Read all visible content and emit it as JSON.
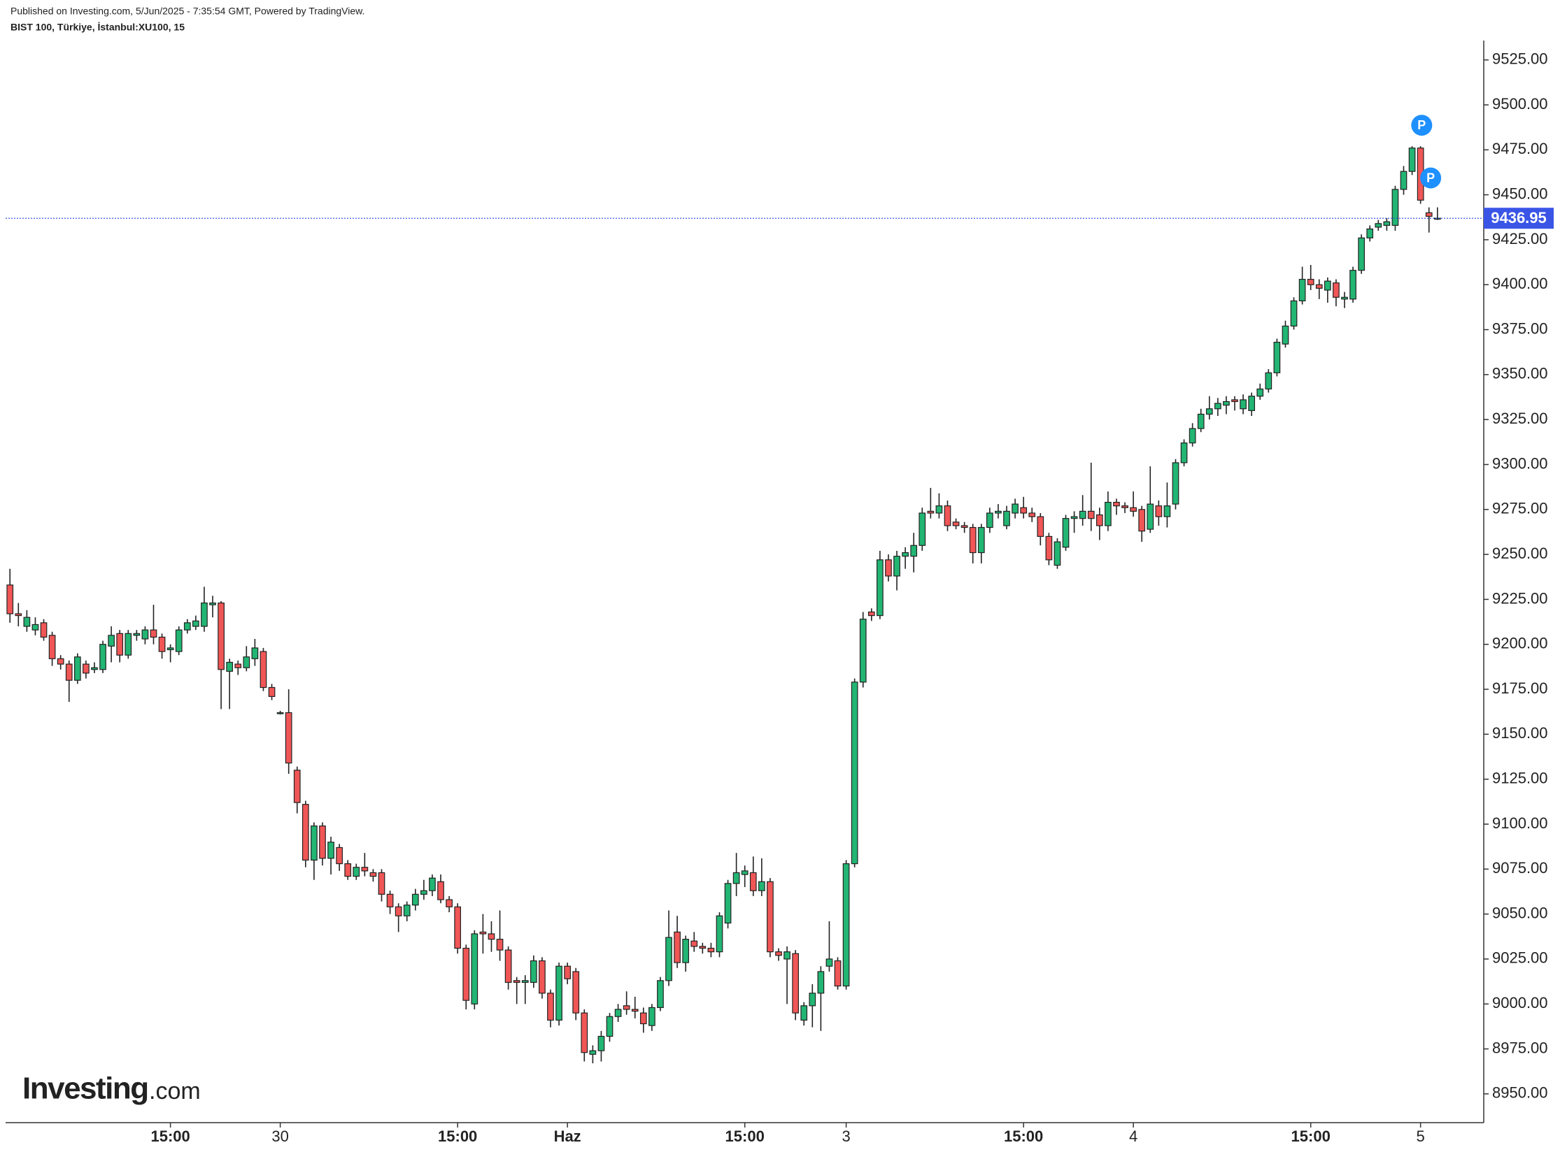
{
  "chart_data": {
    "type": "candlestick",
    "header": "Published on Investing.com, 5/Jun/2025 - 7:35:54 GMT, Powered by TradingView.",
    "title": "BIST 100, Türkiye, İstanbul:XU100, 15",
    "up_color": "#22b573",
    "down_color": "#f05656",
    "price_line_color": "#3a55e6",
    "last_price": 9436.95,
    "markers": [
      "P",
      "P"
    ],
    "logo": {
      "name": "Investing",
      "suffix": ".com"
    },
    "ylim": [
      8934,
      9535
    ],
    "yticks": [
      {
        "value": 8950,
        "label": "8950.00"
      },
      {
        "value": 8975,
        "label": "8975.00"
      },
      {
        "value": 9000,
        "label": "9000.00"
      },
      {
        "value": 9025,
        "label": "9025.00"
      },
      {
        "value": 9050,
        "label": "9050.00"
      },
      {
        "value": 9075,
        "label": "9075.00"
      },
      {
        "value": 9100,
        "label": "9100.00"
      },
      {
        "value": 9125,
        "label": "9125.00"
      },
      {
        "value": 9150,
        "label": "9150.00"
      },
      {
        "value": 9175,
        "label": "9175.00"
      },
      {
        "value": 9200,
        "label": "9200.00"
      },
      {
        "value": 9225,
        "label": "9225.00"
      },
      {
        "value": 9250,
        "label": "9250.00"
      },
      {
        "value": 9275,
        "label": "9275.00"
      },
      {
        "value": 9300,
        "label": "9300.00"
      },
      {
        "value": 9325,
        "label": "9325.00"
      },
      {
        "value": 9350,
        "label": "9350.00"
      },
      {
        "value": 9375,
        "label": "9375.00"
      },
      {
        "value": 9400,
        "label": "9400.00"
      },
      {
        "value": 9425,
        "label": "9425.00"
      },
      {
        "value": 9450,
        "label": "9450.00"
      },
      {
        "value": 9475,
        "label": "9475.00"
      },
      {
        "value": 9500,
        "label": "9500.00"
      },
      {
        "value": 9525,
        "label": "9525.00"
      }
    ],
    "categories": [
      null,
      null,
      null,
      null,
      null,
      null,
      null,
      null,
      null,
      null,
      null,
      null,
      null,
      null,
      null,
      null,
      null,
      null,
      null,
      "15:00",
      null,
      null,
      null,
      null,
      null,
      null,
      null,
      null,
      null,
      null,
      null,
      null,
      "30",
      null,
      null,
      null,
      null,
      null,
      null,
      null,
      null,
      null,
      null,
      null,
      null,
      null,
      null,
      null,
      null,
      null,
      null,
      null,
      null,
      "15:00",
      null,
      null,
      null,
      null,
      null,
      null,
      null,
      null,
      null,
      null,
      null,
      null,
      "Haz",
      null,
      null,
      null,
      null,
      null,
      null,
      null,
      null,
      null,
      null,
      null,
      null,
      null,
      null,
      null,
      null,
      null,
      null,
      null,
      null,
      "15:00",
      null,
      null,
      null,
      null,
      null,
      null,
      null,
      null,
      null,
      null,
      null,
      "3",
      null,
      null,
      null,
      null,
      null,
      null,
      null,
      null,
      null,
      null,
      null,
      null,
      null,
      null,
      null,
      null,
      null,
      null,
      null,
      null,
      "15:00",
      null,
      null,
      null,
      null,
      null,
      null,
      null,
      null,
      null,
      null,
      null,
      null,
      "4",
      null,
      null,
      null,
      null,
      null,
      null,
      null,
      null,
      null,
      null,
      null,
      null,
      null,
      null,
      null,
      null,
      null,
      null,
      null,
      null,
      "15:00",
      null,
      null,
      null,
      null,
      null,
      null,
      null,
      null,
      null,
      null,
      null,
      null,
      "5",
      null,
      null
    ],
    "candles": [
      {
        "o": 9233,
        "h": 9242,
        "l": 9212,
        "c": 9217
      },
      {
        "o": 9217,
        "h": 9223,
        "l": 9210,
        "c": 9216
      },
      {
        "o": 9210,
        "h": 9219,
        "l": 9207,
        "c": 9215
      },
      {
        "o": 9208,
        "h": 9215,
        "l": 9205,
        "c": 9211
      },
      {
        "o": 9212,
        "h": 9214,
        "l": 9202,
        "c": 9204
      },
      {
        "o": 9205,
        "h": 9207,
        "l": 9188,
        "c": 9192
      },
      {
        "o": 9192,
        "h": 9194,
        "l": 9186,
        "c": 9189
      },
      {
        "o": 9189,
        "h": 9191,
        "l": 9168,
        "c": 9180
      },
      {
        "o": 9180,
        "h": 9195,
        "l": 9178,
        "c": 9193
      },
      {
        "o": 9189,
        "h": 9191,
        "l": 9181,
        "c": 9184
      },
      {
        "o": 9186,
        "h": 9190,
        "l": 9184,
        "c": 9187
      },
      {
        "o": 9186,
        "h": 9202,
        "l": 9184,
        "c": 9200
      },
      {
        "o": 9199,
        "h": 9210,
        "l": 9190,
        "c": 9205
      },
      {
        "o": 9206,
        "h": 9208,
        "l": 9190,
        "c": 9194
      },
      {
        "o": 9194,
        "h": 9208,
        "l": 9192,
        "c": 9206
      },
      {
        "o": 9205,
        "h": 9208,
        "l": 9202,
        "c": 9206
      },
      {
        "o": 9203,
        "h": 9210,
        "l": 9200,
        "c": 9208
      },
      {
        "o": 9208,
        "h": 9222,
        "l": 9200,
        "c": 9204
      },
      {
        "o": 9204,
        "h": 9206,
        "l": 9192,
        "c": 9196
      },
      {
        "o": 9197,
        "h": 9200,
        "l": 9190,
        "c": 9198
      },
      {
        "o": 9196,
        "h": 9210,
        "l": 9194,
        "c": 9208
      },
      {
        "o": 9208,
        "h": 9214,
        "l": 9206,
        "c": 9212
      },
      {
        "o": 9210,
        "h": 9216,
        "l": 9208,
        "c": 9213
      },
      {
        "o": 9210,
        "h": 9232,
        "l": 9207,
        "c": 9223
      },
      {
        "o": 9222,
        "h": 9227,
        "l": 9215,
        "c": 9223
      },
      {
        "o": 9223,
        "h": 9224,
        "l": 9164,
        "c": 9186
      },
      {
        "o": 9185,
        "h": 9192,
        "l": 9164,
        "c": 9190
      },
      {
        "o": 9189,
        "h": 9191,
        "l": 9183,
        "c": 9187
      },
      {
        "o": 9187,
        "h": 9199,
        "l": 9185,
        "c": 9193
      },
      {
        "o": 9192,
        "h": 9203,
        "l": 9188,
        "c": 9198
      },
      {
        "o": 9196,
        "h": 9198,
        "l": 9174,
        "c": 9176
      },
      {
        "o": 9176,
        "h": 9178,
        "l": 9169,
        "c": 9171
      },
      {
        "o": 9162,
        "h": 9163,
        "l": 9161,
        "c": 9162
      },
      {
        "o": 9162,
        "h": 9175,
        "l": 9128,
        "c": 9134
      },
      {
        "o": 9130,
        "h": 9132,
        "l": 9106,
        "c": 9112
      },
      {
        "o": 9111,
        "h": 9113,
        "l": 9076,
        "c": 9080
      },
      {
        "o": 9080,
        "h": 9101,
        "l": 9069,
        "c": 9099
      },
      {
        "o": 9099,
        "h": 9101,
        "l": 9077,
        "c": 9081
      },
      {
        "o": 9081,
        "h": 9093,
        "l": 9072,
        "c": 9090
      },
      {
        "o": 9087,
        "h": 9089,
        "l": 9074,
        "c": 9078
      },
      {
        "o": 9078,
        "h": 9080,
        "l": 9069,
        "c": 9071
      },
      {
        "o": 9071,
        "h": 9078,
        "l": 9069,
        "c": 9076
      },
      {
        "o": 9076,
        "h": 9084,
        "l": 9071,
        "c": 9074
      },
      {
        "o": 9073,
        "h": 9075,
        "l": 9068,
        "c": 9071
      },
      {
        "o": 9073,
        "h": 9075,
        "l": 9057,
        "c": 9061
      },
      {
        "o": 9061,
        "h": 9063,
        "l": 9050,
        "c": 9054
      },
      {
        "o": 9054,
        "h": 9056,
        "l": 9040,
        "c": 9049
      },
      {
        "o": 9049,
        "h": 9057,
        "l": 9046,
        "c": 9055
      },
      {
        "o": 9055,
        "h": 9064,
        "l": 9052,
        "c": 9061
      },
      {
        "o": 9061,
        "h": 9069,
        "l": 9058,
        "c": 9063
      },
      {
        "o": 9063,
        "h": 9072,
        "l": 9060,
        "c": 9070
      },
      {
        "o": 9068,
        "h": 9072,
        "l": 9056,
        "c": 9058
      },
      {
        "o": 9058,
        "h": 9060,
        "l": 9051,
        "c": 9054
      },
      {
        "o": 9054,
        "h": 9056,
        "l": 9028,
        "c": 9031
      },
      {
        "o": 9031,
        "h": 9033,
        "l": 8997,
        "c": 9002
      },
      {
        "o": 9000,
        "h": 9041,
        "l": 8997,
        "c": 9039
      },
      {
        "o": 9040,
        "h": 9050,
        "l": 9028,
        "c": 9039
      },
      {
        "o": 9039,
        "h": 9046,
        "l": 9029,
        "c": 9036
      },
      {
        "o": 9036,
        "h": 9052,
        "l": 9024,
        "c": 9030
      },
      {
        "o": 9030,
        "h": 9032,
        "l": 9008,
        "c": 9012
      },
      {
        "o": 9013,
        "h": 9015,
        "l": 9000,
        "c": 9012
      },
      {
        "o": 9012,
        "h": 9016,
        "l": 9000,
        "c": 9013
      },
      {
        "o": 9012,
        "h": 9027,
        "l": 9009,
        "c": 9024
      },
      {
        "o": 9024,
        "h": 9026,
        "l": 9003,
        "c": 9006
      },
      {
        "o": 9006,
        "h": 9008,
        "l": 8987,
        "c": 8991
      },
      {
        "o": 8991,
        "h": 9023,
        "l": 8988,
        "c": 9021
      },
      {
        "o": 9021,
        "h": 9023,
        "l": 9011,
        "c": 9014
      },
      {
        "o": 9018,
        "h": 9020,
        "l": 8991,
        "c": 8995
      },
      {
        "o": 8995,
        "h": 8997,
        "l": 8968,
        "c": 8973
      },
      {
        "o": 8972,
        "h": 8977,
        "l": 8967,
        "c": 8974
      },
      {
        "o": 8974,
        "h": 8985,
        "l": 8968,
        "c": 8982
      },
      {
        "o": 8982,
        "h": 8995,
        "l": 8979,
        "c": 8993
      },
      {
        "o": 8993,
        "h": 9000,
        "l": 8990,
        "c": 8997
      },
      {
        "o": 8999,
        "h": 9007,
        "l": 8994,
        "c": 8997
      },
      {
        "o": 8997,
        "h": 9004,
        "l": 8992,
        "c": 8996
      },
      {
        "o": 8995,
        "h": 8998,
        "l": 8984,
        "c": 8989
      },
      {
        "o": 8988,
        "h": 9000,
        "l": 8985,
        "c": 8998
      },
      {
        "o": 8998,
        "h": 9015,
        "l": 8996,
        "c": 9013
      },
      {
        "o": 9013,
        "h": 9052,
        "l": 9010,
        "c": 9037
      },
      {
        "o": 9040,
        "h": 9049,
        "l": 9020,
        "c": 9023
      },
      {
        "o": 9023,
        "h": 9038,
        "l": 9018,
        "c": 9036
      },
      {
        "o": 9035,
        "h": 9040,
        "l": 9029,
        "c": 9032
      },
      {
        "o": 9032,
        "h": 9034,
        "l": 9028,
        "c": 9031
      },
      {
        "o": 9031,
        "h": 9034,
        "l": 9026,
        "c": 9029
      },
      {
        "o": 9029,
        "h": 9051,
        "l": 9026,
        "c": 9049
      },
      {
        "o": 9045,
        "h": 9069,
        "l": 9042,
        "c": 9067
      },
      {
        "o": 9067,
        "h": 9084,
        "l": 9060,
        "c": 9073
      },
      {
        "o": 9072,
        "h": 9077,
        "l": 9065,
        "c": 9074
      },
      {
        "o": 9073,
        "h": 9082,
        "l": 9060,
        "c": 9063
      },
      {
        "o": 9063,
        "h": 9081,
        "l": 9060,
        "c": 9068
      },
      {
        "o": 9068,
        "h": 9070,
        "l": 9026,
        "c": 9029
      },
      {
        "o": 9029,
        "h": 9031,
        "l": 9024,
        "c": 9027
      },
      {
        "o": 9025,
        "h": 9032,
        "l": 9000,
        "c": 9029
      },
      {
        "o": 9028,
        "h": 9030,
        "l": 8991,
        "c": 8995
      },
      {
        "o": 8991,
        "h": 9001,
        "l": 8988,
        "c": 8999
      },
      {
        "o": 8999,
        "h": 9011,
        "l": 8987,
        "c": 9006
      },
      {
        "o": 9006,
        "h": 9021,
        "l": 8985,
        "c": 9018
      },
      {
        "o": 9021,
        "h": 9046,
        "l": 9018,
        "c": 9025
      },
      {
        "o": 9024,
        "h": 9026,
        "l": 9008,
        "c": 9010
      },
      {
        "o": 9010,
        "h": 9080,
        "l": 9008,
        "c": 9078
      },
      {
        "o": 9078,
        "h": 9181,
        "l": 9076,
        "c": 9179
      },
      {
        "o": 9179,
        "h": 9218,
        "l": 9176,
        "c": 9214
      },
      {
        "o": 9218,
        "h": 9220,
        "l": 9213,
        "c": 9216
      },
      {
        "o": 9216,
        "h": 9252,
        "l": 9214,
        "c": 9247
      },
      {
        "o": 9247,
        "h": 9250,
        "l": 9235,
        "c": 9238
      },
      {
        "o": 9238,
        "h": 9252,
        "l": 9230,
        "c": 9249
      },
      {
        "o": 9249,
        "h": 9254,
        "l": 9242,
        "c": 9251
      },
      {
        "o": 9249,
        "h": 9262,
        "l": 9240,
        "c": 9255
      },
      {
        "o": 9255,
        "h": 9276,
        "l": 9252,
        "c": 9273
      },
      {
        "o": 9274,
        "h": 9287,
        "l": 9270,
        "c": 9273
      },
      {
        "o": 9273,
        "h": 9284,
        "l": 9270,
        "c": 9277
      },
      {
        "o": 9277,
        "h": 9280,
        "l": 9263,
        "c": 9266
      },
      {
        "o": 9268,
        "h": 9270,
        "l": 9264,
        "c": 9266
      },
      {
        "o": 9266,
        "h": 9268,
        "l": 9262,
        "c": 9265
      },
      {
        "o": 9265,
        "h": 9267,
        "l": 9245,
        "c": 9251
      },
      {
        "o": 9251,
        "h": 9267,
        "l": 9245,
        "c": 9265
      },
      {
        "o": 9265,
        "h": 9276,
        "l": 9262,
        "c": 9273
      },
      {
        "o": 9273,
        "h": 9278,
        "l": 9270,
        "c": 9274
      },
      {
        "o": 9266,
        "h": 9277,
        "l": 9264,
        "c": 9274
      },
      {
        "o": 9273,
        "h": 9281,
        "l": 9270,
        "c": 9278
      },
      {
        "o": 9276,
        "h": 9282,
        "l": 9270,
        "c": 9273
      },
      {
        "o": 9273,
        "h": 9276,
        "l": 9268,
        "c": 9271
      },
      {
        "o": 9271,
        "h": 9273,
        "l": 9255,
        "c": 9260
      },
      {
        "o": 9260,
        "h": 9262,
        "l": 9244,
        "c": 9247
      },
      {
        "o": 9244,
        "h": 9259,
        "l": 9242,
        "c": 9257
      },
      {
        "o": 9254,
        "h": 9272,
        "l": 9252,
        "c": 9270
      },
      {
        "o": 9270,
        "h": 9274,
        "l": 9262,
        "c": 9271
      },
      {
        "o": 9270,
        "h": 9283,
        "l": 9266,
        "c": 9274
      },
      {
        "o": 9274,
        "h": 9301,
        "l": 9263,
        "c": 9270
      },
      {
        "o": 9272,
        "h": 9276,
        "l": 9258,
        "c": 9266
      },
      {
        "o": 9266,
        "h": 9285,
        "l": 9263,
        "c": 9279
      },
      {
        "o": 9279,
        "h": 9281,
        "l": 9272,
        "c": 9277
      },
      {
        "o": 9277,
        "h": 9279,
        "l": 9273,
        "c": 9276
      },
      {
        "o": 9276,
        "h": 9285,
        "l": 9271,
        "c": 9274
      },
      {
        "o": 9275,
        "h": 9277,
        "l": 9257,
        "c": 9263
      },
      {
        "o": 9264,
        "h": 9299,
        "l": 9262,
        "c": 9278
      },
      {
        "o": 9277,
        "h": 9280,
        "l": 9266,
        "c": 9271
      },
      {
        "o": 9271,
        "h": 9290,
        "l": 9265,
        "c": 9277
      },
      {
        "o": 9278,
        "h": 9303,
        "l": 9275,
        "c": 9301
      },
      {
        "o": 9301,
        "h": 9314,
        "l": 9299,
        "c": 9312
      },
      {
        "o": 9312,
        "h": 9323,
        "l": 9310,
        "c": 9320
      },
      {
        "o": 9320,
        "h": 9331,
        "l": 9318,
        "c": 9328
      },
      {
        "o": 9328,
        "h": 9338,
        "l": 9325,
        "c": 9331
      },
      {
        "o": 9331,
        "h": 9337,
        "l": 9327,
        "c": 9334
      },
      {
        "o": 9333,
        "h": 9338,
        "l": 9328,
        "c": 9335
      },
      {
        "o": 9336,
        "h": 9338,
        "l": 9330,
        "c": 9335
      },
      {
        "o": 9331,
        "h": 9339,
        "l": 9328,
        "c": 9336
      },
      {
        "o": 9330,
        "h": 9340,
        "l": 9327,
        "c": 9338
      },
      {
        "o": 9338,
        "h": 9345,
        "l": 9336,
        "c": 9342
      },
      {
        "o": 9342,
        "h": 9353,
        "l": 9340,
        "c": 9351
      },
      {
        "o": 9351,
        "h": 9370,
        "l": 9349,
        "c": 9368
      },
      {
        "o": 9367,
        "h": 9380,
        "l": 9365,
        "c": 9377
      },
      {
        "o": 9377,
        "h": 9393,
        "l": 9375,
        "c": 9391
      },
      {
        "o": 9391,
        "h": 9410,
        "l": 9389,
        "c": 9403
      },
      {
        "o": 9403,
        "h": 9411,
        "l": 9397,
        "c": 9400
      },
      {
        "o": 9400,
        "h": 9403,
        "l": 9392,
        "c": 9398
      },
      {
        "o": 9397,
        "h": 9404,
        "l": 9390,
        "c": 9402
      },
      {
        "o": 9401,
        "h": 9403,
        "l": 9388,
        "c": 9393
      },
      {
        "o": 9392,
        "h": 9396,
        "l": 9387,
        "c": 9393
      },
      {
        "o": 9392,
        "h": 9410,
        "l": 9390,
        "c": 9408
      },
      {
        "o": 9408,
        "h": 9428,
        "l": 9406,
        "c": 9426
      },
      {
        "o": 9426,
        "h": 9433,
        "l": 9424,
        "c": 9431
      },
      {
        "o": 9432,
        "h": 9436,
        "l": 9430,
        "c": 9434
      },
      {
        "o": 9433,
        "h": 9437,
        "l": 9430,
        "c": 9435
      },
      {
        "o": 9433,
        "h": 9455,
        "l": 9430,
        "c": 9453
      },
      {
        "o": 9453,
        "h": 9466,
        "l": 9450,
        "c": 9463
      },
      {
        "o": 9463,
        "h": 9477,
        "l": 9461,
        "c": 9476
      },
      {
        "o": 9476,
        "h": 9477,
        "l": 9445,
        "c": 9447
      },
      {
        "o": 9440,
        "h": 9443,
        "l": 9429,
        "c": 9438
      },
      {
        "o": 9437,
        "h": 9443,
        "l": 9436,
        "c": 9437
      }
    ]
  }
}
